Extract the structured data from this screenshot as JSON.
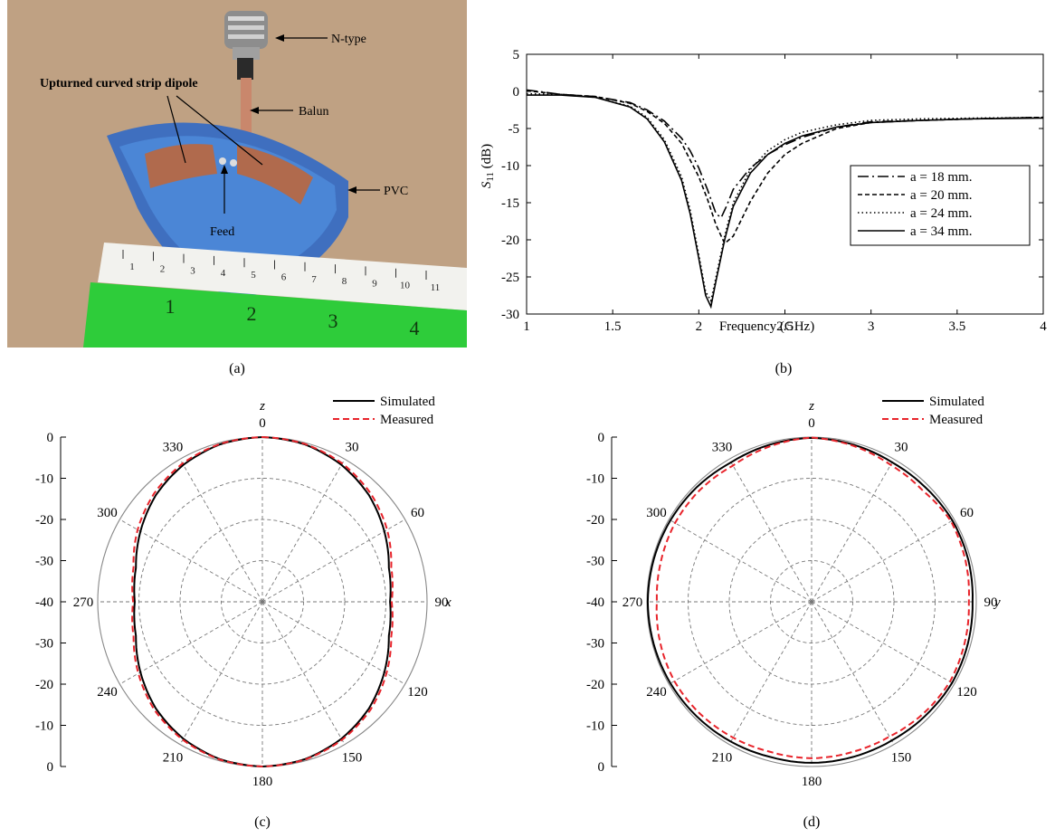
{
  "panels": {
    "a": {
      "caption": "(a)",
      "callouts": {
        "n_type": "N-type",
        "dipole": "Upturned curved strip dipole",
        "balun": "Balun",
        "pvc": "PVC",
        "feed": "Feed"
      },
      "ruler_top_numbers": [
        "1",
        "2",
        "3",
        "4",
        "5",
        "6",
        "7",
        "8",
        "9",
        "10",
        "11"
      ],
      "ruler_bottom_numbers": [
        "1",
        "2",
        "3",
        "4"
      ]
    },
    "b": {
      "caption": "(b)"
    },
    "c": {
      "caption": "(c)"
    },
    "d": {
      "caption": "(d)"
    }
  },
  "chart_data": [
    {
      "id": "b",
      "type": "line",
      "xlabel": "Frequency (GHz)",
      "ylabel_main": "S",
      "ylabel_sub": "11",
      "ylabel_unit": " (dB)",
      "xlim": [
        1,
        4
      ],
      "ylim": [
        -30,
        5
      ],
      "xticks": [
        1,
        1.5,
        2,
        2.5,
        3,
        3.5,
        4
      ],
      "xtick_labels": [
        "1",
        "1.5",
        "2",
        "2.5",
        "3",
        "3.5",
        "4"
      ],
      "yticks": [
        5,
        0,
        -5,
        -10,
        -15,
        -20,
        -25,
        -30
      ],
      "ytick_labels": [
        "5",
        "0",
        "-5",
        "-10",
        "-15",
        "-20",
        "-25",
        "-30"
      ],
      "legend_position": "right",
      "series": [
        {
          "name": "a = 18 mm.",
          "dash": "dashdot",
          "x": [
            1.0,
            1.2,
            1.4,
            1.6,
            1.7,
            1.8,
            1.9,
            1.95,
            2.0,
            2.05,
            2.1,
            2.13,
            2.16,
            2.2,
            2.3,
            2.4,
            2.5,
            2.6,
            2.8,
            3.0,
            3.3,
            3.6,
            4.0
          ],
          "y": [
            0.2,
            -0.4,
            -0.7,
            -1.5,
            -2.5,
            -4.0,
            -6.3,
            -8.0,
            -10.3,
            -13.2,
            -16.5,
            -17.0,
            -15.5,
            -13.2,
            -10.3,
            -8.5,
            -7.2,
            -6.2,
            -4.8,
            -4.1,
            -3.9,
            -3.7,
            -3.5
          ]
        },
        {
          "name": "a = 20 mm.",
          "dash": "dashed",
          "x": [
            1.0,
            1.2,
            1.4,
            1.6,
            1.7,
            1.8,
            1.9,
            2.0,
            2.05,
            2.1,
            2.15,
            2.2,
            2.3,
            2.4,
            2.5,
            2.6,
            2.8,
            3.0,
            3.3,
            3.6,
            4.0
          ],
          "y": [
            0.1,
            -0.4,
            -0.7,
            -1.6,
            -2.7,
            -4.3,
            -7.0,
            -11.5,
            -14.5,
            -18.0,
            -20.5,
            -19.5,
            -14.8,
            -11.0,
            -8.5,
            -7.0,
            -5.0,
            -4.2,
            -3.9,
            -3.7,
            -3.5
          ]
        },
        {
          "name": "a = 24 mm.",
          "dash": "dotted",
          "x": [
            1.0,
            1.2,
            1.4,
            1.6,
            1.7,
            1.8,
            1.9,
            1.95,
            2.0,
            2.04,
            2.07,
            2.1,
            2.15,
            2.2,
            2.3,
            2.4,
            2.5,
            2.6,
            2.8,
            3.0,
            3.3,
            3.6,
            4.0
          ],
          "y": [
            -0.3,
            -0.4,
            -0.8,
            -2.0,
            -3.5,
            -6.5,
            -11.5,
            -16.0,
            -22.0,
            -27.0,
            -28.2,
            -25.0,
            -19.5,
            -15.0,
            -10.5,
            -8.0,
            -6.5,
            -5.5,
            -4.5,
            -3.9,
            -3.7,
            -3.6,
            -3.5
          ]
        },
        {
          "name": "a = 34 mm.",
          "dash": "solid",
          "x": [
            1.0,
            1.2,
            1.4,
            1.6,
            1.7,
            1.8,
            1.9,
            1.95,
            2.0,
            2.04,
            2.07,
            2.1,
            2.15,
            2.2,
            2.3,
            2.4,
            2.5,
            2.6,
            2.8,
            3.0,
            3.3,
            3.6,
            4.0
          ],
          "y": [
            -0.5,
            -0.5,
            -0.8,
            -2.1,
            -3.7,
            -6.8,
            -12.0,
            -16.5,
            -22.5,
            -27.5,
            -29.0,
            -25.5,
            -20.0,
            -15.5,
            -11.0,
            -8.5,
            -7.0,
            -6.0,
            -4.8,
            -4.2,
            -3.9,
            -3.7,
            -3.6
          ]
        }
      ]
    },
    {
      "id": "c",
      "type": "polar",
      "axis_top_label": "z",
      "axis_side_label": "x",
      "angle_labels": [
        "0",
        "30",
        "60",
        "90",
        "120",
        "150",
        "180",
        "210",
        "240",
        "270",
        "300",
        "330"
      ],
      "radial_labels": [
        "0",
        "-10",
        "-20",
        "-30",
        "-40",
        "-30",
        "-20",
        "-10",
        "0"
      ],
      "rlim": [
        -40,
        0
      ],
      "legend_position": "top-right",
      "series": [
        {
          "name": "Simulated",
          "style": "solid",
          "color": "#000000",
          "theta": [
            0,
            15,
            30,
            45,
            60,
            75,
            90,
            105,
            120,
            135,
            150,
            165,
            180,
            195,
            210,
            225,
            240,
            255,
            270,
            285,
            300,
            315,
            330,
            345
          ],
          "r": [
            0.0,
            -0.4,
            -1.6,
            -3.4,
            -5.8,
            -8.2,
            -9.0,
            -8.2,
            -5.8,
            -3.4,
            -1.6,
            -0.4,
            0.0,
            -0.4,
            -1.6,
            -3.4,
            -5.8,
            -8.2,
            -9.0,
            -8.2,
            -5.8,
            -3.4,
            -1.6,
            -0.4
          ]
        },
        {
          "name": "Measured",
          "style": "dashed",
          "color": "#e8242b",
          "theta": [
            0,
            15,
            30,
            45,
            60,
            75,
            90,
            105,
            120,
            135,
            150,
            165,
            180,
            195,
            210,
            225,
            240,
            255,
            270,
            285,
            300,
            315,
            330,
            345
          ],
          "r": [
            0.0,
            -0.3,
            -1.2,
            -2.8,
            -5.0,
            -7.6,
            -8.6,
            -7.6,
            -5.2,
            -2.9,
            -1.3,
            -0.3,
            0.0,
            -0.3,
            -1.3,
            -2.9,
            -5.2,
            -7.6,
            -8.6,
            -7.6,
            -5.0,
            -2.8,
            -1.2,
            -0.3
          ]
        }
      ]
    },
    {
      "id": "d",
      "type": "polar",
      "axis_top_label": "z",
      "axis_side_label": "y",
      "angle_labels": [
        "0",
        "30",
        "60",
        "90",
        "120",
        "150",
        "180",
        "210",
        "240",
        "270",
        "300",
        "330"
      ],
      "radial_labels": [
        "0",
        "-10",
        "-20",
        "-30",
        "-40",
        "-30",
        "-20",
        "-10",
        "0"
      ],
      "rlim": [
        -40,
        0
      ],
      "legend_position": "top-right",
      "series": [
        {
          "name": "Simulated",
          "style": "solid",
          "color": "#000000",
          "theta": [
            0,
            15,
            30,
            45,
            60,
            75,
            90,
            105,
            120,
            135,
            150,
            165,
            180,
            195,
            210,
            225,
            240,
            255,
            270,
            285,
            300,
            315,
            330,
            345
          ],
          "r": [
            -0.2,
            -0.5,
            -0.9,
            -0.8,
            -0.5,
            -0.6,
            -0.9,
            -0.7,
            -0.6,
            -0.9,
            -1.1,
            -1.0,
            -0.9,
            -1.0,
            -0.8,
            -0.6,
            -0.4,
            -0.3,
            -0.2,
            -0.3,
            -0.4,
            -0.6,
            -0.9,
            -0.5
          ]
        },
        {
          "name": "Measured",
          "style": "dashed",
          "color": "#e8242b",
          "theta": [
            0,
            15,
            30,
            45,
            60,
            75,
            90,
            105,
            120,
            135,
            150,
            165,
            180,
            195,
            210,
            225,
            240,
            255,
            270,
            285,
            300,
            315,
            330,
            345
          ],
          "r": [
            -0.1,
            -0.8,
            -1.6,
            -1.8,
            -0.9,
            -1.3,
            -1.8,
            -1.5,
            -1.2,
            -1.6,
            -2.2,
            -2.2,
            -2.0,
            -2.2,
            -1.9,
            -1.6,
            -1.5,
            -1.9,
            -2.4,
            -2.1,
            -1.7,
            -1.6,
            -1.8,
            -0.9
          ]
        }
      ]
    }
  ]
}
